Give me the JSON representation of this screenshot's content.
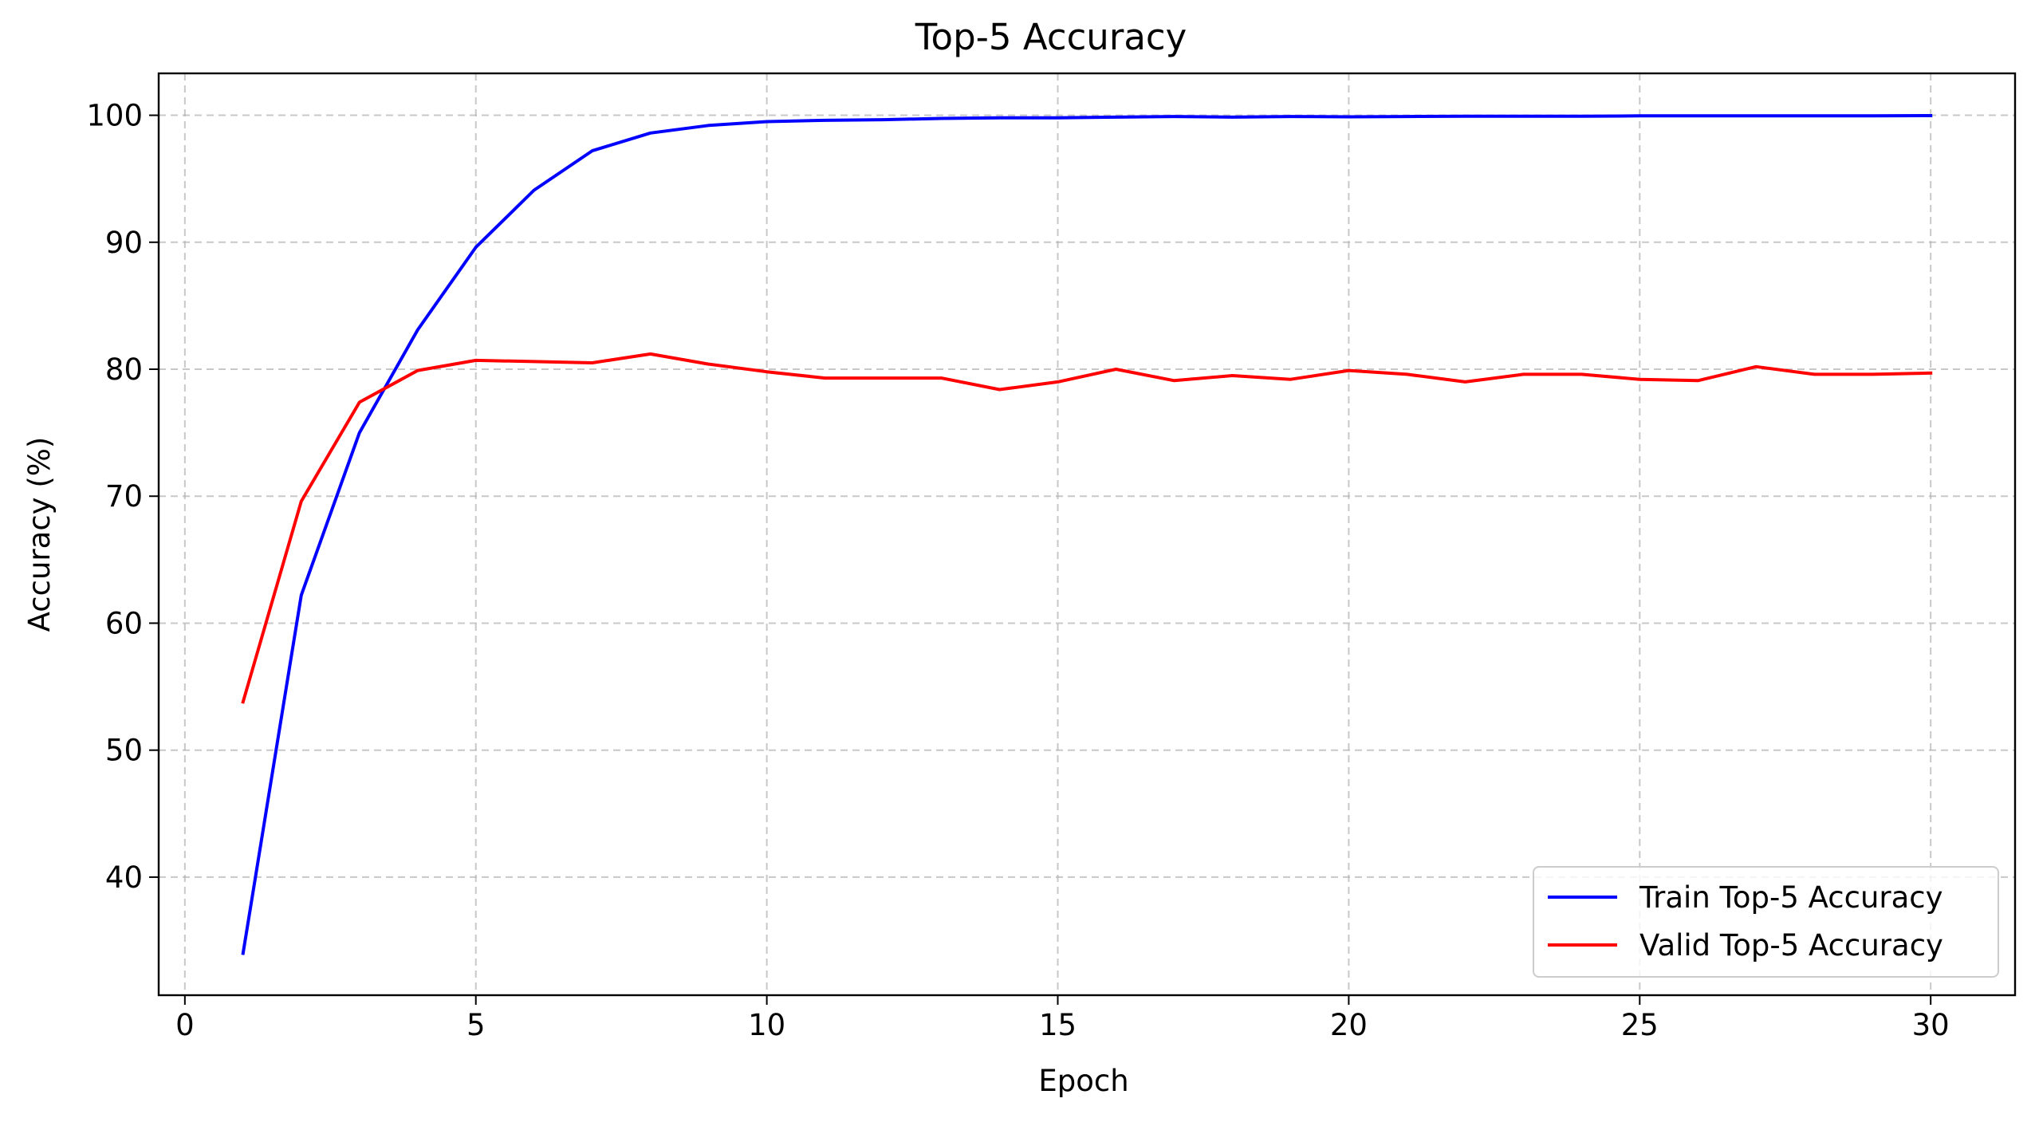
{
  "chart_data": {
    "type": "line",
    "title": "Top-5 Accuracy",
    "xlabel": "Epoch",
    "ylabel": "Accuracy (%)",
    "xlim": [
      -0.45,
      31.45
    ],
    "ylim": [
      30.7,
      103.3
    ],
    "xticks": [
      0,
      5,
      10,
      15,
      20,
      25,
      30
    ],
    "yticks": [
      40,
      50,
      60,
      70,
      80,
      90,
      100
    ],
    "grid": true,
    "legend_position": "lower-right",
    "x": [
      1,
      2,
      3,
      4,
      5,
      6,
      7,
      8,
      9,
      10,
      11,
      12,
      13,
      14,
      15,
      16,
      17,
      18,
      19,
      20,
      21,
      22,
      23,
      24,
      25,
      26,
      27,
      28,
      29,
      30
    ],
    "series": [
      {
        "name": "Train Top-5 Accuracy",
        "color": "#0000ff",
        "values": [
          34.0,
          62.2,
          75.0,
          83.1,
          89.6,
          94.1,
          97.2,
          98.6,
          99.2,
          99.5,
          99.6,
          99.65,
          99.75,
          99.8,
          99.8,
          99.85,
          99.9,
          99.85,
          99.9,
          99.88,
          99.9,
          99.92,
          99.92,
          99.92,
          99.95,
          99.96,
          99.96,
          99.96,
          99.96,
          99.97
        ]
      },
      {
        "name": "Valid Top-5 Accuracy",
        "color": "#ff0000",
        "values": [
          53.8,
          69.6,
          77.4,
          79.9,
          80.7,
          80.6,
          80.5,
          81.2,
          80.4,
          79.8,
          79.3,
          79.3,
          79.3,
          78.4,
          79.0,
          80.0,
          79.1,
          79.5,
          79.2,
          79.9,
          79.6,
          79.0,
          79.6,
          79.6,
          79.2,
          79.1,
          80.2,
          79.6,
          79.6,
          79.7
        ]
      }
    ]
  }
}
